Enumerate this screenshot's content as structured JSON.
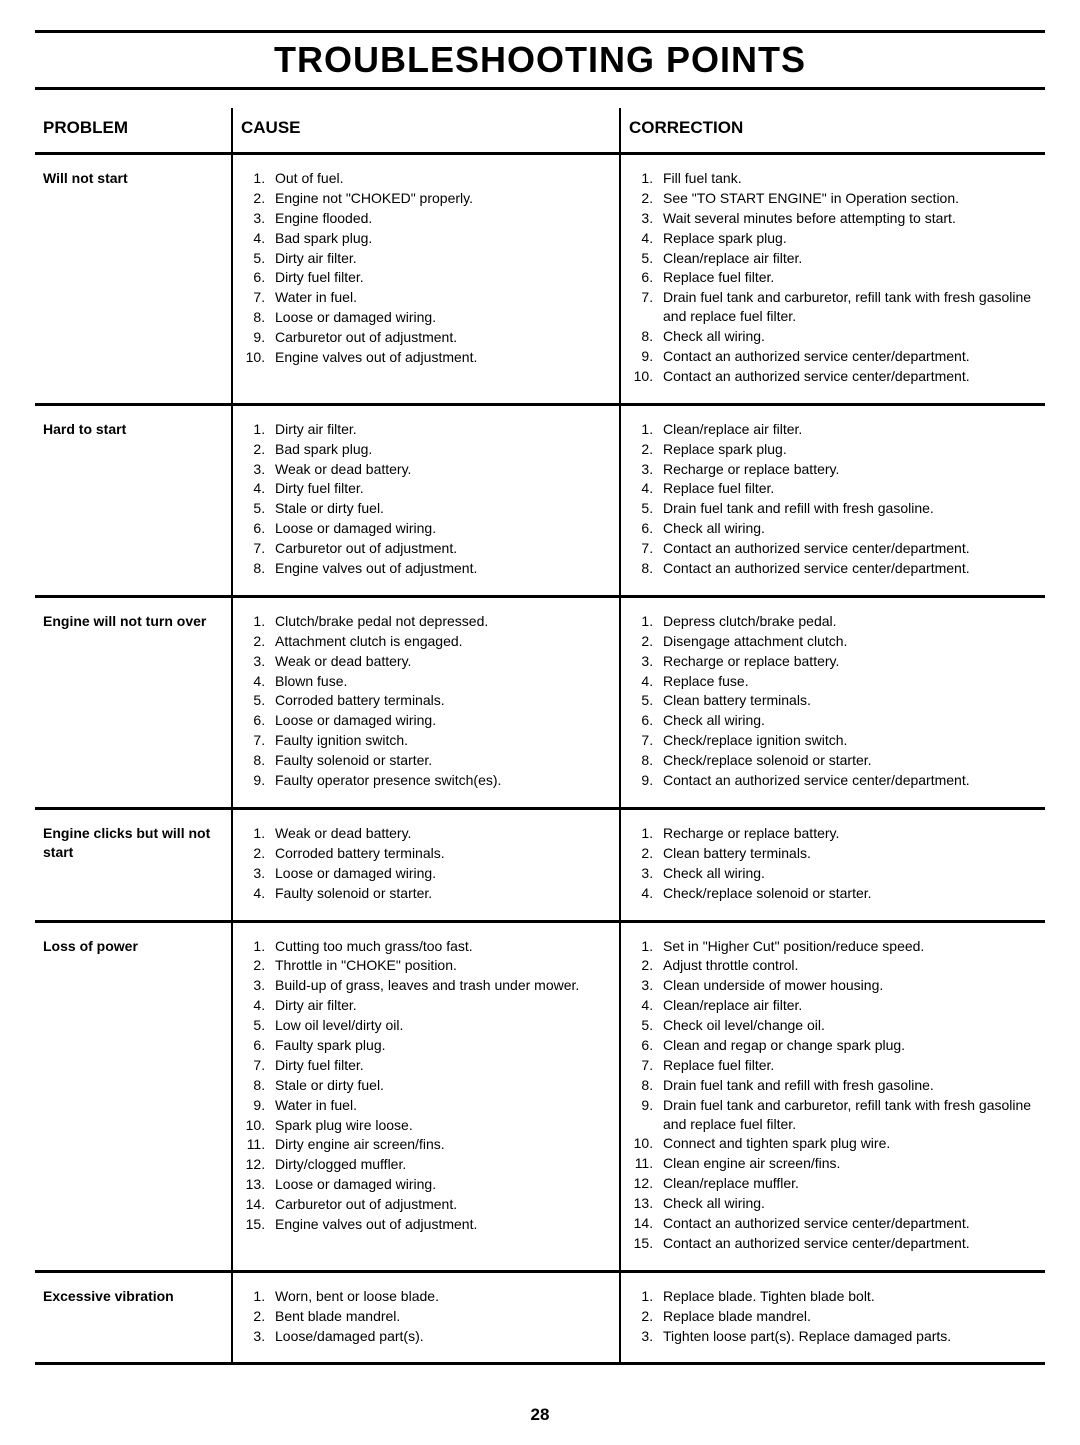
{
  "title": "TROUBLESHOOTING POINTS",
  "page_number": "28",
  "headers": {
    "problem": "PROBLEM",
    "cause": "CAUSE",
    "correction": "CORRECTION"
  },
  "rows": [
    {
      "problem": "Will not start",
      "causes": [
        "Out of fuel.",
        "Engine not \"CHOKED\" properly.",
        "Engine flooded.",
        "Bad spark plug.",
        "Dirty air filter.",
        "Dirty fuel filter.",
        "Water in fuel.",
        "Loose or damaged wiring.",
        "Carburetor out of adjustment.",
        "Engine valves out of adjustment."
      ],
      "corrections": [
        "Fill fuel tank.",
        "See \"TO START ENGINE\" in Operation section.",
        "Wait several minutes before attempting to start.",
        "Replace spark plug.",
        "Clean/replace air filter.",
        "Replace fuel filter.",
        "Drain fuel tank and carburetor, refill tank with fresh gasoline and replace fuel filter.",
        "Check all wiring.",
        "Contact an authorized service center/department.",
        "Contact an authorized service center/department."
      ]
    },
    {
      "problem": "Hard to start",
      "causes": [
        "Dirty air filter.",
        "Bad spark plug.",
        "Weak or dead battery.",
        "Dirty fuel filter.",
        "Stale or dirty fuel.",
        "Loose or damaged wiring.",
        "Carburetor out of adjustment.",
        "Engine valves out of adjustment."
      ],
      "corrections": [
        "Clean/replace air filter.",
        "Replace spark plug.",
        "Recharge or replace battery.",
        "Replace fuel filter.",
        "Drain fuel tank and refill with fresh gasoline.",
        "Check all wiring.",
        "Contact an authorized service center/department.",
        "Contact an authorized service center/department."
      ]
    },
    {
      "problem": "Engine will not turn over",
      "causes": [
        "Clutch/brake pedal not depressed.",
        "Attachment clutch is engaged.",
        "Weak or dead battery.",
        "Blown fuse.",
        "Corroded battery terminals.",
        "Loose or damaged wiring.",
        "Faulty ignition switch.",
        "Faulty solenoid or starter.",
        "Faulty operator presence switch(es)."
      ],
      "corrections": [
        "Depress clutch/brake pedal.",
        "Disengage attachment clutch.",
        "Recharge or replace battery.",
        "Replace fuse.",
        "Clean battery terminals.",
        "Check all wiring.",
        "Check/replace ignition switch.",
        "Check/replace solenoid or starter.",
        "Contact an authorized service center/department."
      ]
    },
    {
      "problem": "Engine clicks but will not start",
      "causes": [
        "Weak or dead battery.",
        "Corroded battery terminals.",
        "Loose or damaged wiring.",
        "Faulty solenoid or starter."
      ],
      "corrections": [
        "Recharge or replace battery.",
        "Clean battery terminals.",
        "Check all wiring.",
        "Check/replace solenoid or starter."
      ]
    },
    {
      "problem": "Loss of power",
      "causes": [
        "Cutting too much grass/too fast.",
        "Throttle in \"CHOKE\" position.",
        "Build-up of grass, leaves and trash under mower.",
        "Dirty air filter.",
        "Low oil level/dirty oil.",
        "Faulty spark plug.",
        "Dirty fuel filter.",
        "Stale or dirty fuel.",
        "Water in fuel.",
        "Spark plug wire loose.",
        "Dirty engine air screen/fins.",
        "Dirty/clogged muffler.",
        "Loose or damaged wiring.",
        "Carburetor out of adjustment.",
        "Engine valves out of adjustment."
      ],
      "corrections": [
        "Set in \"Higher Cut\" position/reduce speed.",
        "Adjust throttle control.",
        "Clean underside of mower housing.",
        "Clean/replace air filter.",
        "Check oil level/change oil.",
        "Clean and regap or change spark plug.",
        "Replace fuel filter.",
        "Drain fuel tank and refill with fresh gasoline.",
        "Drain fuel tank and carburetor, refill tank with fresh gasoline and replace fuel filter.",
        "Connect and tighten spark plug wire.",
        "Clean engine air screen/fins.",
        "Clean/replace muffler.",
        "Check all wiring.",
        "Contact an authorized service center/department.",
        "Contact an authorized service center/department."
      ]
    },
    {
      "problem": "Excessive vibration",
      "causes": [
        "Worn, bent or loose blade.",
        "Bent blade mandrel.",
        "Loose/damaged part(s)."
      ],
      "corrections": [
        "Replace blade.  Tighten blade bolt.",
        "Replace blade mandrel.",
        "Tighten loose part(s).  Replace damaged parts."
      ]
    }
  ]
}
